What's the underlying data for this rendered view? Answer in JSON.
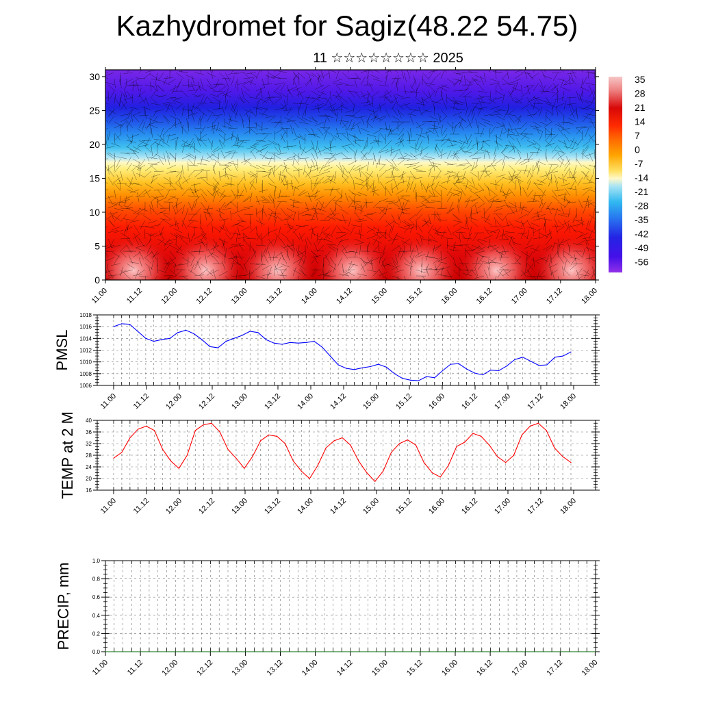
{
  "header": {
    "title": "Kazhydromet for Sagiz(48.22 54.75)",
    "subtitle": "11 ☆☆☆☆☆☆☆☆ 2025"
  },
  "colors": {
    "pmsl_line": "#0000ff",
    "temp_line": "#ff0000",
    "precip_line": "#006400"
  },
  "chart_data": [
    {
      "type": "heatmap",
      "name_ref": "cross-section",
      "x_tick_labels": [
        "11.00",
        "11.12",
        "12.00",
        "12.12",
        "13.00",
        "13.12",
        "14.00",
        "14.12",
        "15.00",
        "15.12",
        "16.00",
        "16.12",
        "17.00",
        "17.12",
        "18.00"
      ],
      "ylim": [
        0,
        31
      ],
      "y_ticks": [
        0,
        5,
        10,
        15,
        20,
        25,
        30
      ],
      "colorbar_labels": [
        "35",
        "28",
        "21",
        "14",
        "7",
        "0",
        "-7",
        "-14",
        "-21",
        "-28",
        "-35",
        "-42",
        "-49",
        "-56"
      ],
      "colorbar_colors": [
        "#f4b4b4",
        "#ee7070",
        "#e01818",
        "#ff2a00",
        "#ff6a00",
        "#ffa000",
        "#ffd040",
        "#fff4a0",
        "#9ae0f0",
        "#30b8f0",
        "#2870f0",
        "#2828e8",
        "#4a10e8",
        "#8a20e8"
      ],
      "overlay": "wind barbs"
    },
    {
      "type": "line",
      "name_ref": "pmsl",
      "ylabel": "PMSL",
      "ylim": [
        1006,
        1018
      ],
      "y_ticks": [
        1006,
        1008,
        1010,
        1012,
        1014,
        1016,
        1018
      ],
      "x_tick_labels": [
        "11.00",
        "11.12",
        "12.00",
        "12.12",
        "13.00",
        "13.12",
        "14.00",
        "14.12",
        "15.00",
        "15.12",
        "16.00",
        "16.12",
        "17.00",
        "17.12",
        "18.00"
      ],
      "values": [
        1016.0,
        1016.5,
        1016.4,
        1015.2,
        1014.0,
        1013.5,
        1013.8,
        1014.0,
        1015.0,
        1015.4,
        1014.8,
        1013.8,
        1012.6,
        1012.4,
        1013.5,
        1014.0,
        1014.5,
        1015.2,
        1015.0,
        1013.8,
        1013.2,
        1013.0,
        1013.3,
        1013.2,
        1013.3,
        1013.5,
        1012.5,
        1011.0,
        1009.5,
        1008.9,
        1008.7,
        1009.0,
        1009.2,
        1009.6,
        1009.1,
        1008.0,
        1007.2,
        1006.9,
        1006.8,
        1007.5,
        1007.3,
        1008.5,
        1009.6,
        1009.7,
        1008.8,
        1008.1,
        1007.8,
        1008.6,
        1008.5,
        1009.3,
        1010.4,
        1010.8,
        1010.1,
        1009.4,
        1009.5,
        1010.8,
        1011.0,
        1011.7
      ]
    },
    {
      "type": "line",
      "name_ref": "temp",
      "ylabel": "TEMP at 2 M",
      "ylim": [
        16,
        40
      ],
      "y_ticks": [
        16,
        20,
        24,
        28,
        32,
        36,
        40
      ],
      "x_tick_labels": [
        "11.00",
        "11.12",
        "12.00",
        "12.12",
        "13.00",
        "13.12",
        "14.00",
        "14.12",
        "15.00",
        "15.12",
        "16.00",
        "16.12",
        "17.00",
        "17.12",
        "18.00"
      ],
      "values": [
        27.0,
        29.0,
        34.0,
        37.0,
        38.0,
        36.5,
        30.0,
        26.0,
        23.5,
        28.0,
        36.5,
        38.5,
        39.0,
        36.0,
        30.0,
        27.0,
        23.5,
        27.5,
        33.0,
        35.0,
        34.5,
        32.0,
        26.0,
        22.5,
        20.0,
        24.5,
        30.5,
        33.0,
        34.0,
        31.5,
        26.0,
        22.0,
        19.0,
        22.5,
        29.0,
        32.0,
        33.3,
        31.5,
        25.5,
        22.0,
        20.5,
        24.5,
        31.0,
        32.5,
        35.5,
        34.5,
        31.5,
        27.5,
        25.5,
        28.0,
        35.0,
        38.0,
        39.0,
        36.5,
        30.5,
        27.5,
        25.5
      ]
    },
    {
      "type": "line",
      "name_ref": "precip",
      "ylabel": "PRECIP, mm",
      "ylim": [
        0.0,
        1.0
      ],
      "y_ticks": [
        0.0,
        0.2,
        0.4,
        0.6,
        0.8,
        1.0
      ],
      "y_tick_labels": [
        "0.0",
        "0.2",
        "0.4",
        "0.6",
        "0.8",
        "1.0"
      ],
      "x_tick_labels": [
        "11.00",
        "11.12",
        "12.00",
        "12.12",
        "13.00",
        "13.12",
        "14.00",
        "14.12",
        "15.00",
        "15.12",
        "16.00",
        "16.12",
        "17.00",
        "17.12",
        "18.00"
      ],
      "values": [
        0,
        0,
        0,
        0,
        0,
        0,
        0,
        0,
        0,
        0,
        0,
        0,
        0,
        0,
        0,
        0,
        0,
        0,
        0,
        0,
        0,
        0,
        0,
        0,
        0,
        0,
        0,
        0,
        0,
        0,
        0,
        0,
        0,
        0,
        0,
        0,
        0,
        0,
        0,
        0,
        0,
        0,
        0,
        0,
        0,
        0,
        0,
        0,
        0,
        0,
        0,
        0,
        0,
        0,
        0,
        0,
        0
      ]
    }
  ]
}
